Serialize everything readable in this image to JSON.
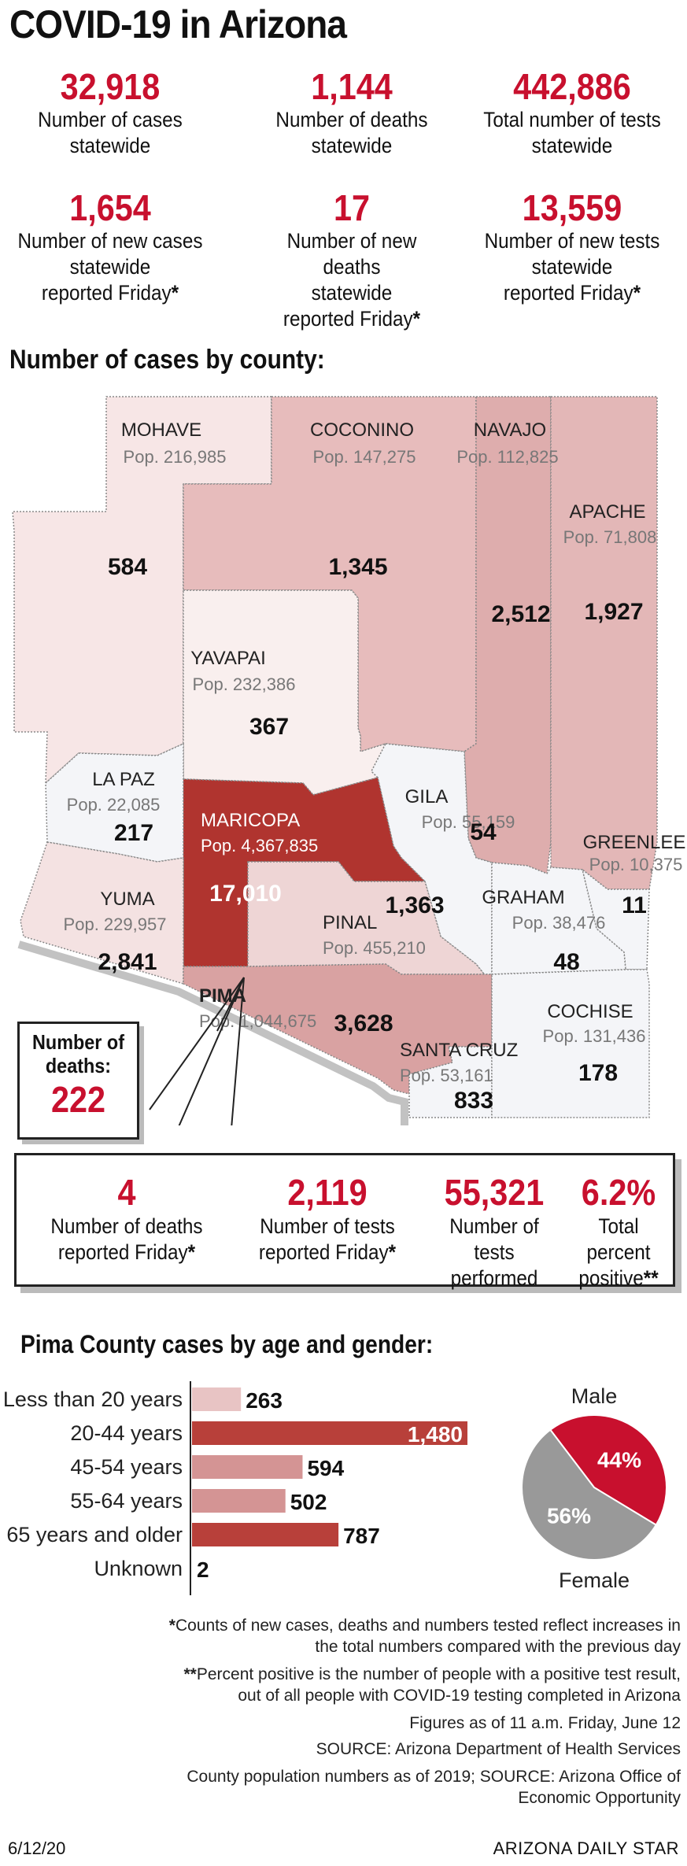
{
  "title": "COVID-19 in Arizona",
  "top_stats": [
    {
      "value": "32,918",
      "label": "Number of cases statewide"
    },
    {
      "value": "1,144",
      "label": "Number of deaths statewide"
    },
    {
      "value": "442,886",
      "label": "Total number of tests statewide"
    },
    {
      "value": "1,654",
      "label": "Number of new cases statewide reported Friday*"
    },
    {
      "value": "17",
      "label": "Number of new deaths statewide reported Friday*"
    },
    {
      "value": "13,559",
      "label": "Number of new tests statewide reported Friday*"
    }
  ],
  "map_title": "Number of cases by county:",
  "counties": [
    {
      "name": "MOHAVE",
      "pop": "Pop. 216,985",
      "cases": "584"
    },
    {
      "name": "COCONINO",
      "pop": "Pop. 147,275",
      "cases": "1,345"
    },
    {
      "name": "NAVAJO",
      "pop": "Pop. 112,825",
      "cases": "2,512"
    },
    {
      "name": "APACHE",
      "pop": "Pop. 71,808",
      "cases": "1,927"
    },
    {
      "name": "YAVAPAI",
      "pop": "Pop. 232,386",
      "cases": "367"
    },
    {
      "name": "LA PAZ",
      "pop": "Pop. 22,085",
      "cases": "217"
    },
    {
      "name": "GILA",
      "pop": "Pop. 55,159",
      "cases": "54"
    },
    {
      "name": "MARICOPA",
      "pop": "Pop. 4,367,835",
      "cases": "17,010"
    },
    {
      "name": "GREENLEE",
      "pop": "Pop. 10,375",
      "cases": "11"
    },
    {
      "name": "YUMA",
      "pop": "Pop. 229,957",
      "cases": "2,841"
    },
    {
      "name": "PINAL",
      "pop": "Pop. 455,210",
      "cases": "1,363"
    },
    {
      "name": "GRAHAM",
      "pop": "Pop. 38,476",
      "cases": "48"
    },
    {
      "name": "PIMA",
      "pop": "Pop. 1,044,675",
      "cases": "3,628"
    },
    {
      "name": "COCHISE",
      "pop": "Pop. 131,436",
      "cases": "178"
    },
    {
      "name": "SANTA CRUZ",
      "pop": "Pop. 53,161",
      "cases": "833"
    }
  ],
  "pima_deaths": {
    "label_line1": "Number of",
    "label_line2": "deaths:",
    "value": "222"
  },
  "pima_stats": [
    {
      "value": "4",
      "label": "Number of deaths reported Friday*"
    },
    {
      "value": "2,119",
      "label": "Number of tests reported Friday*"
    },
    {
      "value": "55,321",
      "label": "Number of tests performed"
    },
    {
      "value": "6.2%",
      "label": "Total percent positive**"
    }
  ],
  "age_title": "Pima County cases by age and gender:",
  "chart_data": [
    {
      "type": "bar",
      "title": "Pima County cases by age and gender:",
      "categories": [
        "Less than 20 years",
        "20-44 years",
        "45-54 years",
        "55-64 years",
        "65 years and older",
        "Unknown"
      ],
      "values": [
        263,
        1480,
        594,
        502,
        787,
        2
      ],
      "value_labels": [
        "263",
        "1,480",
        "594",
        "502",
        "787",
        "2"
      ],
      "orientation": "horizontal",
      "colors": {
        "263": "#e8c4c4",
        "1480": "#b8403a",
        "594": "#d49494",
        "502": "#d49494",
        "787": "#b8403a",
        "2": "#d49494"
      }
    },
    {
      "type": "pie",
      "labels": [
        "Male",
        "Female"
      ],
      "values": [
        44,
        56
      ],
      "value_labels": [
        "44%",
        "56%"
      ],
      "colors": [
        "#c8102e",
        "#999999"
      ]
    }
  ],
  "notes": [
    {
      "bold": "*",
      "text": "Counts of new cases, deaths and numbers tested reflect increases in",
      "text2": "the total numbers compared with the previous day"
    },
    {
      "bold": "**",
      "text": "Percent positive is the number of people with a positive test result,",
      "text2": "out of all people with COVID-19 testing completed in Arizona"
    },
    {
      "bold": "",
      "text": "Figures as of 11 a.m. Friday, June 12",
      "text2": ""
    },
    {
      "bold": "",
      "text": "SOURCE: Arizona Department of Health Services",
      "text2": ""
    },
    {
      "bold": "",
      "text": "County population numbers as of 2019; SOURCE: Arizona Office of",
      "text2": "Economic Opportunity"
    }
  ],
  "footer": {
    "date": "6/12/20",
    "source": "ARIZONA DAILY STAR"
  },
  "colors": {
    "accent": "#c8102e",
    "maricopa": "#b0342f",
    "dark_bar": "#b8403a",
    "light_bar": "#e8c4c4",
    "medium_bar": "#d49494"
  }
}
